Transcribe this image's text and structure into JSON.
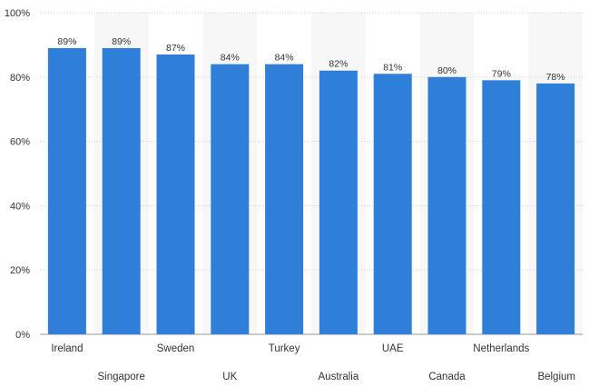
{
  "chart_data": {
    "type": "bar",
    "categories": [
      "Ireland",
      "Singapore",
      "Sweden",
      "UK",
      "Turkey",
      "Australia",
      "UAE",
      "Canada",
      "Netherlands",
      "Belgium"
    ],
    "values": [
      89,
      89,
      87,
      84,
      84,
      82,
      81,
      80,
      79,
      78
    ],
    "value_labels": [
      "89%",
      "89%",
      "87%",
      "84%",
      "84%",
      "82%",
      "81%",
      "80%",
      "79%",
      "78%"
    ],
    "y_ticks": [
      "0%",
      "20%",
      "40%",
      "60%",
      "80%",
      "100%"
    ],
    "y_tick_values": [
      0,
      20,
      40,
      60,
      80,
      100
    ],
    "ylim": [
      0,
      100
    ],
    "title": "",
    "xlabel": "",
    "ylabel": "",
    "grid": true,
    "legend": "none",
    "bar_color": "#2f7ed8",
    "alt_band_color": "#f7f7f7",
    "grid_color": "#cccccc",
    "text_color": "#333333"
  }
}
